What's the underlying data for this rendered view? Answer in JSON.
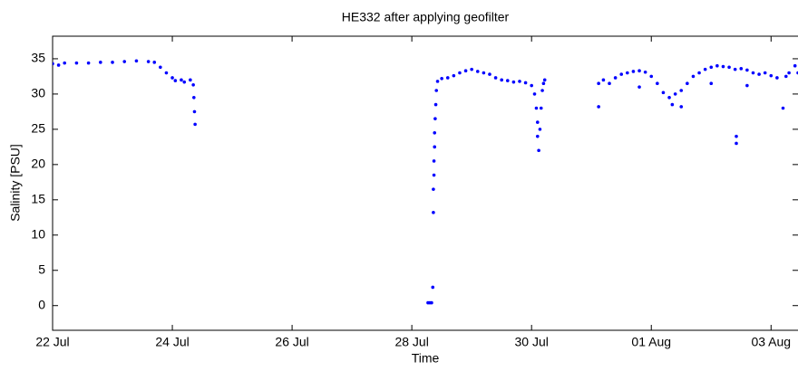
{
  "chart_data": {
    "type": "scatter",
    "title": "HE332 after applying geofilter",
    "xlabel": "Time",
    "ylabel": "Salinity [PSU]",
    "color": "#0000ff",
    "x": [
      0,
      0.1,
      0.2,
      0.4,
      0.6,
      0.8,
      1.0,
      1.2,
      1.4,
      1.6,
      1.7,
      1.8,
      1.9,
      2.0,
      2.05,
      2.15,
      2.2,
      2.3,
      2.35,
      2.36,
      2.37,
      2.38,
      6.27,
      6.3,
      6.33,
      6.35,
      6.36,
      6.36,
      6.37,
      6.37,
      6.38,
      6.38,
      6.39,
      6.4,
      6.41,
      6.43,
      6.5,
      6.6,
      6.7,
      6.8,
      6.9,
      7.0,
      7.1,
      7.2,
      7.3,
      7.4,
      7.5,
      7.6,
      7.7,
      7.8,
      7.9,
      8.0,
      8.05,
      8.08,
      8.1,
      8.1,
      8.12,
      8.14,
      8.16,
      8.18,
      8.2,
      8.22,
      9.12,
      9.12,
      9.2,
      9.3,
      9.4,
      9.5,
      9.6,
      9.7,
      9.8,
      9.8,
      9.9,
      10.0,
      10.1,
      10.2,
      10.3,
      10.35,
      10.4,
      10.5,
      10.5,
      10.6,
      10.7,
      10.8,
      10.9,
      11.0,
      11.0,
      11.1,
      11.2,
      11.3,
      11.42,
      11.42,
      11.4,
      11.5,
      11.6,
      11.6,
      11.7,
      11.8,
      11.9,
      12.0,
      12.1,
      12.2,
      12.25,
      12.3,
      12.4,
      12.45
    ],
    "values": [
      34.3,
      34.1,
      34.4,
      34.4,
      34.4,
      34.5,
      34.5,
      34.6,
      34.7,
      34.6,
      34.5,
      33.8,
      33.0,
      32.3,
      31.9,
      32.0,
      31.7,
      32.0,
      31.3,
      29.5,
      27.5,
      25.7,
      0.4,
      0.4,
      0.4,
      2.6,
      13.2,
      16.5,
      18.5,
      20.5,
      22.5,
      24.5,
      26.5,
      28.5,
      30.5,
      31.8,
      32.2,
      32.3,
      32.6,
      33.0,
      33.3,
      33.5,
      33.2,
      33.0,
      32.8,
      32.3,
      32.0,
      31.9,
      31.7,
      31.8,
      31.6,
      31.2,
      30.0,
      28.0,
      26.0,
      24.0,
      22.0,
      25.0,
      28.0,
      30.5,
      31.5,
      32.0,
      31.5,
      28.2,
      32.0,
      31.5,
      32.3,
      32.8,
      33.0,
      33.2,
      33.3,
      31.0,
      33.1,
      32.5,
      31.5,
      30.2,
      29.5,
      28.5,
      30.0,
      30.5,
      28.2,
      31.5,
      32.5,
      33.0,
      33.5,
      33.8,
      31.5,
      34.0,
      33.9,
      33.8,
      24.0,
      23.0,
      33.5,
      33.6,
      33.4,
      31.2,
      33.0,
      32.8,
      33.0,
      32.6,
      32.3,
      28.0,
      32.5,
      33.0,
      34.0,
      33.0
    ],
    "xlim": [
      0,
      12.45
    ],
    "ylim": [
      -3.5,
      38.2
    ],
    "xticks": [
      {
        "value": 0,
        "label": "22 Jul"
      },
      {
        "value": 2,
        "label": "24 Jul"
      },
      {
        "value": 4,
        "label": "26 Jul"
      },
      {
        "value": 6,
        "label": "28 Jul"
      },
      {
        "value": 8,
        "label": "30 Jul"
      },
      {
        "value": 10,
        "label": "01 Aug"
      },
      {
        "value": 12,
        "label": "03 Aug"
      }
    ],
    "yticks": [
      0,
      5,
      10,
      15,
      20,
      25,
      30,
      35
    ]
  }
}
